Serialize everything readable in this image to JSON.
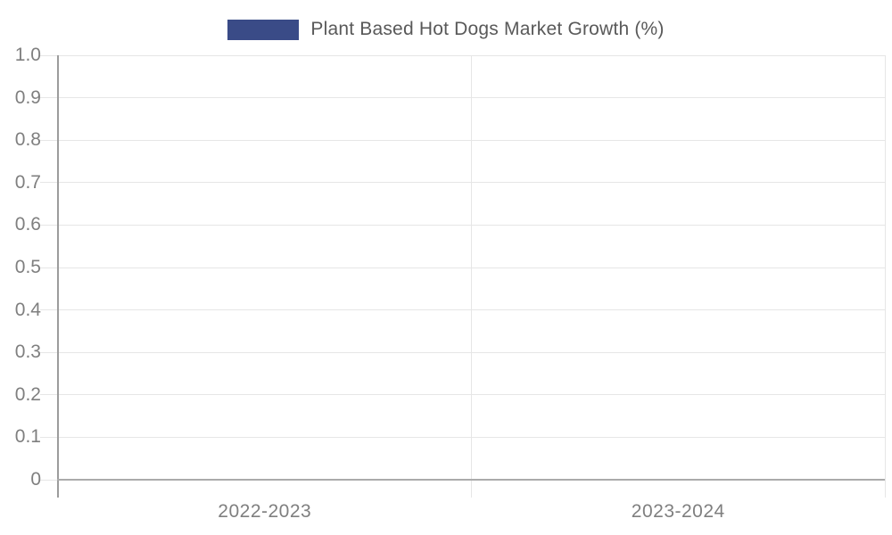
{
  "chart_data": {
    "type": "bar",
    "title": "Plant Based Hot Dogs Market Growth (%)",
    "categories": [
      "2022-2023",
      "2023-2024"
    ],
    "series": [
      {
        "name": "Plant Based Hot Dogs Market Growth (%)",
        "color": "#3A4B87",
        "values": []
      }
    ],
    "ylim": [
      0,
      1.0
    ],
    "yticks": [
      0,
      0.1,
      0.2,
      0.3,
      0.4,
      0.5,
      0.6,
      0.7,
      0.8,
      0.9,
      1.0
    ],
    "ytick_labels": [
      "0",
      "0.1",
      "0.2",
      "0.3",
      "0.4",
      "0.5",
      "0.6",
      "0.7",
      "0.8",
      "0.9",
      "1.0"
    ],
    "grid": true,
    "legend_position": "top-center",
    "plot_is_empty": true
  },
  "colors": {
    "background": "#ffffff",
    "series_swatch": "#3A4B87",
    "gridline": "#e6e6e6",
    "axis_line": "#9c9c9c",
    "baseline": "#ababab",
    "tick_label": "#7f7f7f",
    "title_text": "#595959"
  }
}
